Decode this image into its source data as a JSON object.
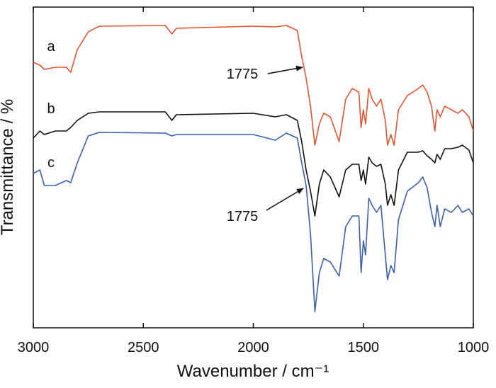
{
  "chart_data": {
    "type": "line",
    "xlabel": "Wavenumber / cm⁻¹",
    "ylabel": "Transmittance / %",
    "xlim": [
      3000,
      1000
    ],
    "xticks": [
      3000,
      2500,
      2000,
      1500,
      1000
    ],
    "ylim": [
      0,
      90.6
    ],
    "annotations": [
      "1775",
      "1775"
    ],
    "x": [
      3000,
      2970,
      2950,
      2900,
      2850,
      2830,
      2800,
      2750,
      2700,
      2400,
      2370,
      2350,
      2000,
      1900,
      1850,
      1800,
      1780,
      1760,
      1740,
      1720,
      1700,
      1680,
      1650,
      1610,
      1580,
      1550,
      1520,
      1510,
      1500,
      1490,
      1475,
      1460,
      1440,
      1420,
      1400,
      1390,
      1375,
      1360,
      1340,
      1300,
      1250,
      1230,
      1210,
      1190,
      1175,
      1165,
      1150,
      1130,
      1100,
      1070,
      1050,
      1020,
      1000
    ],
    "series": [
      {
        "name": "a",
        "color": "#e8532f",
        "values": [
          75,
          74.2,
          73,
          73.6,
          73.6,
          72.2,
          78.6,
          83.6,
          85.2,
          85.4,
          83,
          84.6,
          85.2,
          85,
          85.4,
          84,
          76.6,
          70.6,
          62.6,
          51.6,
          57.6,
          60.6,
          59.6,
          52.6,
          64.6,
          67.6,
          66.6,
          56.6,
          61.6,
          57.6,
          67.6,
          64.6,
          62.6,
          64.6,
          58.6,
          51.6,
          54.6,
          51.6,
          61.6,
          65.6,
          67.6,
          68.6,
          66.6,
          62.6,
          55.6,
          61.6,
          59.6,
          62.6,
          61.6,
          60.6,
          61.6,
          59.6,
          55.6
        ]
      },
      {
        "name": "b",
        "color": "#111111",
        "values": [
          53.6,
          55.6,
          54.6,
          55.6,
          55.6,
          56.6,
          58.6,
          60.6,
          61,
          61,
          58.6,
          60.2,
          60.6,
          59.6,
          60.2,
          58.6,
          52.6,
          44.6,
          38.6,
          31.6,
          40.6,
          44.6,
          42.6,
          37,
          44.6,
          46.2,
          46.2,
          41.6,
          44.6,
          40.6,
          48.2,
          46.6,
          45.6,
          46.2,
          40.6,
          34.6,
          37.6,
          34.6,
          44.6,
          49.6,
          49.6,
          50,
          48.6,
          47.6,
          46.6,
          49,
          47.6,
          50.6,
          50.6,
          51,
          51.6,
          50.2,
          46.6
        ]
      },
      {
        "name": "c",
        "color": "#3a5fb0",
        "values": [
          43.6,
          44.6,
          40.2,
          40.2,
          41.6,
          41,
          46.6,
          54.2,
          55.2,
          55,
          54.2,
          54.6,
          54.6,
          53,
          55,
          53.6,
          46.6,
          40.2,
          26.6,
          4.6,
          15.6,
          19.6,
          18.6,
          14.6,
          28.6,
          31.6,
          31.6,
          15.6,
          24.6,
          20.6,
          36.6,
          34.6,
          32.6,
          34.6,
          20.6,
          13.6,
          17.6,
          15.6,
          30.6,
          38.6,
          41,
          42.6,
          39.6,
          32.6,
          28.6,
          34.6,
          28.6,
          33.6,
          32.6,
          34.6,
          32.6,
          33.6,
          31.6
        ]
      }
    ]
  }
}
